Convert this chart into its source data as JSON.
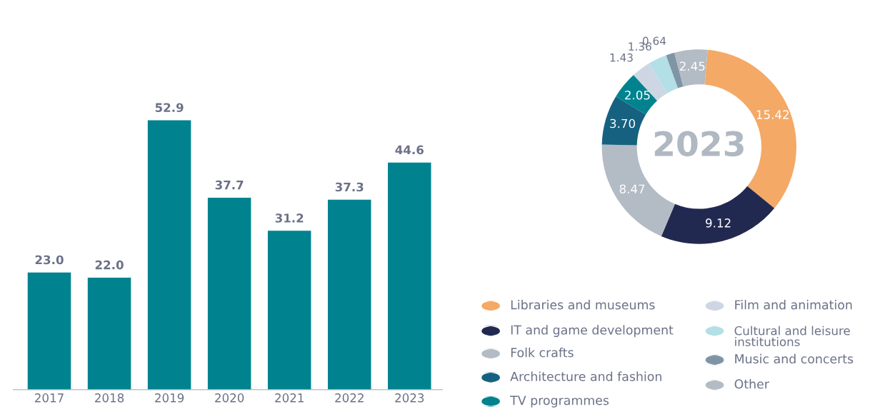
{
  "chart_data": [
    {
      "type": "bar",
      "categories": [
        "2017",
        "2018",
        "2019",
        "2020",
        "2021",
        "2022",
        "2023"
      ],
      "values": [
        23.0,
        22.0,
        52.9,
        37.7,
        31.2,
        37.3,
        44.6
      ],
      "value_labels": [
        "23.0",
        "22.0",
        "52.9",
        "37.7",
        "31.2",
        "37.3",
        "44.6"
      ],
      "color": "#00838f",
      "grid": false,
      "legend": false,
      "tick_labels": "x"
    },
    {
      "type": "donut",
      "title": "2023",
      "categories": [
        "Libraries and museums",
        "IT and game development",
        "Folk crafts",
        "Architecture and fashion",
        "TV programmes",
        "Film and animation",
        "Cultural and leisure institutions",
        "Music and concerts",
        "Other"
      ],
      "values": [
        15.42,
        9.12,
        8.47,
        3.7,
        2.05,
        1.43,
        1.36,
        0.64,
        2.45
      ],
      "colors": [
        "#f4a966",
        "#212950",
        "#b3bbc4",
        "#176180",
        "#00838f",
        "#ced6e3",
        "#b3dfe6",
        "#7f95a6",
        "#b3bbc4"
      ],
      "value_labels": [
        "15.42",
        "9.12",
        "8.47",
        "3.70",
        "2.05",
        "1.43",
        "1.36",
        "0.64",
        "2.45"
      ],
      "legend": "bottom"
    }
  ]
}
